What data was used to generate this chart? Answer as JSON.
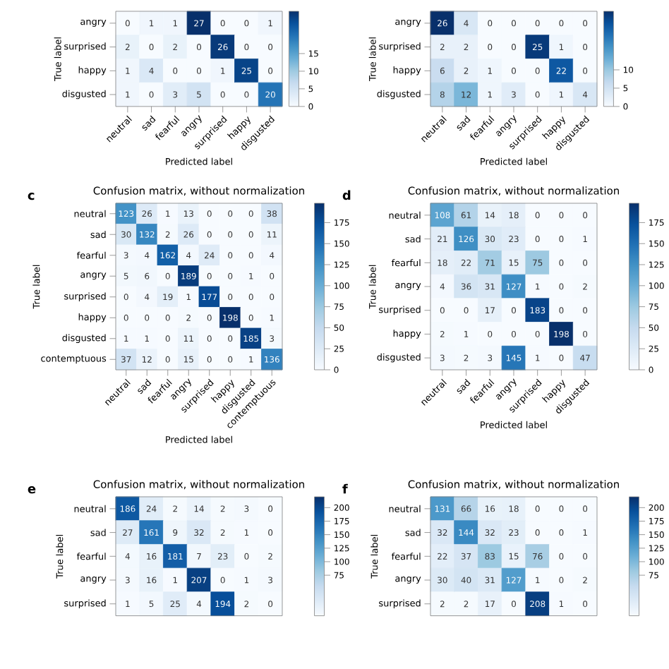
{
  "chart_data": [
    {
      "type": "heatmap",
      "xlabel": "Predicted label",
      "ylabel": "True label",
      "data_labels": true,
      "categories": [
        "neutral",
        "sad",
        "fearful",
        "angry",
        "surprised",
        "happy",
        "disgusted"
      ],
      "y_categories": [
        "angry",
        "surprised",
        "happy",
        "disgusted"
      ],
      "cells": [
        [
          0,
          1,
          1,
          27,
          0,
          0,
          1
        ],
        [
          2,
          0,
          2,
          0,
          26,
          0,
          0
        ],
        [
          1,
          4,
          0,
          0,
          1,
          25,
          0
        ],
        [
          1,
          0,
          3,
          5,
          0,
          0,
          20
        ]
      ],
      "clim": [
        0,
        27
      ],
      "cticks": [
        0,
        5,
        10,
        15
      ]
    },
    {
      "type": "heatmap",
      "xlabel": "Predicted label",
      "ylabel": "True label",
      "categories": [
        "neutral",
        "sad",
        "fearful",
        "angry",
        "surprised",
        "happy",
        "disgusted"
      ],
      "y_categories": [
        "angry",
        "surprised",
        "happy",
        "disgusted"
      ],
      "data_labels": true,
      "cells": [
        [
          26,
          4,
          0,
          0,
          0,
          0,
          0
        ],
        [
          2,
          2,
          0,
          0,
          25,
          1,
          0
        ],
        [
          6,
          2,
          1,
          0,
          0,
          22,
          0
        ],
        [
          8,
          12,
          1,
          3,
          0,
          1,
          4
        ]
      ],
      "clim": [
        0,
        26
      ],
      "cticks": [
        0,
        5,
        10
      ]
    },
    {
      "type": "heatmap",
      "title": "Confusion matrix, without normalization",
      "xlabel": "Predicted label",
      "ylabel": "True label",
      "annotations": [
        "c"
      ],
      "categories": [
        "neutral",
        "sad",
        "fearful",
        "angry",
        "surprised",
        "happy",
        "disgusted",
        "contemptuous"
      ],
      "y_categories": [
        "neutral",
        "sad",
        "fearful",
        "angry",
        "surprised",
        "happy",
        "disgusted",
        "contemptuous"
      ],
      "data_labels": true,
      "cells": [
        [
          123,
          26,
          1,
          13,
          0,
          0,
          0,
          38
        ],
        [
          30,
          132,
          2,
          26,
          0,
          0,
          0,
          11
        ],
        [
          3,
          4,
          162,
          4,
          24,
          0,
          0,
          4
        ],
        [
          5,
          6,
          0,
          189,
          0,
          0,
          1,
          0
        ],
        [
          0,
          4,
          19,
          1,
          177,
          0,
          0,
          0
        ],
        [
          0,
          0,
          0,
          2,
          0,
          198,
          0,
          1
        ],
        [
          1,
          1,
          0,
          11,
          0,
          0,
          185,
          3
        ],
        [
          37,
          12,
          0,
          15,
          0,
          0,
          1,
          136
        ]
      ],
      "clim": [
        0,
        198
      ],
      "cticks": [
        0,
        25,
        50,
        75,
        100,
        125,
        150,
        175
      ]
    },
    {
      "type": "heatmap",
      "title": "Confusion matrix, without normalization",
      "xlabel": "Predicted label",
      "ylabel": "True label",
      "annotations": [
        "d"
      ],
      "categories": [
        "neutral",
        "sad",
        "fearful",
        "angry",
        "surprised",
        "happy",
        "disgusted"
      ],
      "y_categories": [
        "neutral",
        "sad",
        "fearful",
        "angry",
        "surprised",
        "happy",
        "disgusted"
      ],
      "data_labels": true,
      "cells": [
        [
          108,
          61,
          14,
          18,
          0,
          0,
          0
        ],
        [
          21,
          126,
          30,
          23,
          0,
          0,
          1
        ],
        [
          18,
          22,
          71,
          15,
          75,
          0,
          0
        ],
        [
          4,
          36,
          31,
          127,
          1,
          0,
          2
        ],
        [
          0,
          0,
          17,
          0,
          183,
          0,
          0
        ],
        [
          2,
          1,
          0,
          0,
          0,
          198,
          0
        ],
        [
          3,
          2,
          3,
          145,
          1,
          0,
          47
        ]
      ],
      "clim": [
        0,
        198
      ],
      "cticks": [
        0,
        25,
        50,
        75,
        100,
        125,
        150,
        175
      ]
    },
    {
      "type": "heatmap",
      "title": "Confusion matrix, without normalization",
      "ylabel": "True label",
      "annotations": [
        "e"
      ],
      "tick_labels": "y",
      "categories": [
        null,
        null,
        null,
        null,
        null,
        null,
        null
      ],
      "y_categories": [
        "neutral",
        "sad",
        "fearful",
        "angry",
        "surprised"
      ],
      "data_labels": true,
      "cells": [
        [
          186,
          24,
          2,
          14,
          2,
          3,
          0
        ],
        [
          27,
          161,
          9,
          32,
          2,
          1,
          0
        ],
        [
          4,
          16,
          181,
          7,
          23,
          0,
          2
        ],
        [
          3,
          16,
          1,
          207,
          0,
          1,
          3
        ],
        [
          1,
          5,
          25,
          4,
          194,
          2,
          0
        ]
      ],
      "clim": [
        0,
        220
      ],
      "cticks": [
        75,
        100,
        125,
        150,
        175,
        200
      ]
    },
    {
      "type": "heatmap",
      "title": "Confusion matrix, without normalization",
      "ylabel": "True label",
      "annotations": [
        "f"
      ],
      "tick_labels": "y",
      "categories": [
        null,
        null,
        null,
        null,
        null,
        null,
        null
      ],
      "y_categories": [
        "neutral",
        "sad",
        "fearful",
        "angry",
        "surprised"
      ],
      "data_labels": true,
      "cells": [
        [
          131,
          66,
          16,
          18,
          0,
          0,
          0
        ],
        [
          32,
          144,
          32,
          23,
          0,
          0,
          1
        ],
        [
          22,
          37,
          83,
          15,
          76,
          0,
          0
        ],
        [
          30,
          40,
          31,
          127,
          1,
          0,
          2
        ],
        [
          2,
          2,
          17,
          0,
          208,
          1,
          0
        ]
      ],
      "clim": [
        0,
        220
      ],
      "cticks": [
        75,
        100,
        125,
        150,
        175,
        200
      ]
    }
  ]
}
